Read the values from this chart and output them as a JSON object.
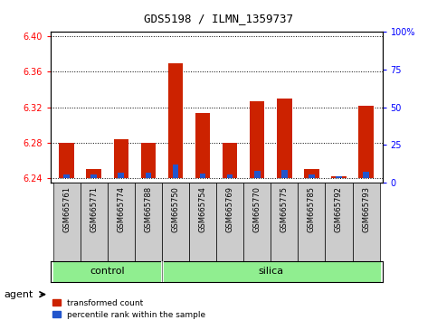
{
  "title": "GDS5198 / ILMN_1359737",
  "samples": [
    "GSM665761",
    "GSM665771",
    "GSM665774",
    "GSM665788",
    "GSM665750",
    "GSM665754",
    "GSM665769",
    "GSM665770",
    "GSM665775",
    "GSM665785",
    "GSM665792",
    "GSM665793"
  ],
  "groups": [
    "control",
    "control",
    "control",
    "control",
    "silica",
    "silica",
    "silica",
    "silica",
    "silica",
    "silica",
    "silica",
    "silica"
  ],
  "red_values": [
    6.28,
    6.25,
    6.284,
    6.28,
    6.37,
    6.313,
    6.28,
    6.327,
    6.33,
    6.25,
    6.242,
    6.322
  ],
  "blue_values": [
    6.244,
    6.244,
    6.246,
    6.246,
    6.255,
    6.245,
    6.244,
    6.248,
    6.249,
    6.244,
    6.242,
    6.247
  ],
  "ylim_left": [
    6.235,
    6.405
  ],
  "ylim_right": [
    0,
    100
  ],
  "yticks_left": [
    6.24,
    6.28,
    6.32,
    6.36,
    6.4
  ],
  "yticks_right": [
    0,
    25,
    50,
    75,
    100
  ],
  "ytick_labels_right": [
    "0",
    "25",
    "50",
    "75",
    "100%"
  ],
  "base": 6.24,
  "bar_width": 0.55,
  "red_color": "#CC2200",
  "blue_color": "#2255CC",
  "bg_color": "#ffffff",
  "green_color": "#90EE90",
  "gray_cell_color": "#CCCCCC",
  "legend_red": "transformed count",
  "legend_blue": "percentile rank within the sample",
  "title_fontsize": 9,
  "axis_fontsize": 7,
  "label_fontsize": 6,
  "group_fontsize": 8
}
